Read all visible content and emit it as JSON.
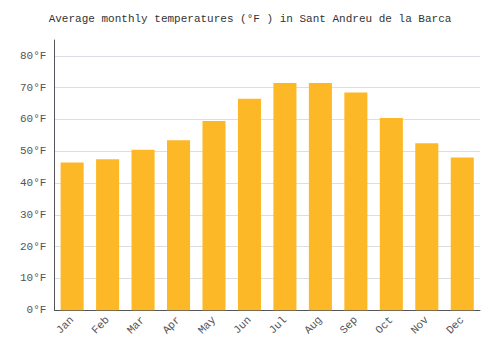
{
  "chart_data": {
    "type": "bar",
    "title": "Average monthly temperatures (°F ) in Sant Andreu de la Barca",
    "categories": [
      "Jan",
      "Feb",
      "Mar",
      "Apr",
      "May",
      "Jun",
      "Jul",
      "Aug",
      "Sep",
      "Oct",
      "Nov",
      "Dec"
    ],
    "values": [
      46.5,
      47.5,
      50.5,
      53.5,
      59.5,
      66.5,
      71.5,
      71.5,
      68.5,
      60.5,
      52.5,
      48.0
    ],
    "color": "#FDB827",
    "ylim": [
      0,
      85
    ],
    "yticks": [
      {
        "value": 0,
        "label": "0°F"
      },
      {
        "value": 10,
        "label": "10°F"
      },
      {
        "value": 20,
        "label": "20°F"
      },
      {
        "value": 30,
        "label": "30°F"
      },
      {
        "value": 40,
        "label": "40°F"
      },
      {
        "value": 50,
        "label": "50°F"
      },
      {
        "value": 60,
        "label": "60°F"
      },
      {
        "value": 70,
        "label": "70°F"
      },
      {
        "value": 80,
        "label": "80°F"
      }
    ],
    "grid": true
  }
}
